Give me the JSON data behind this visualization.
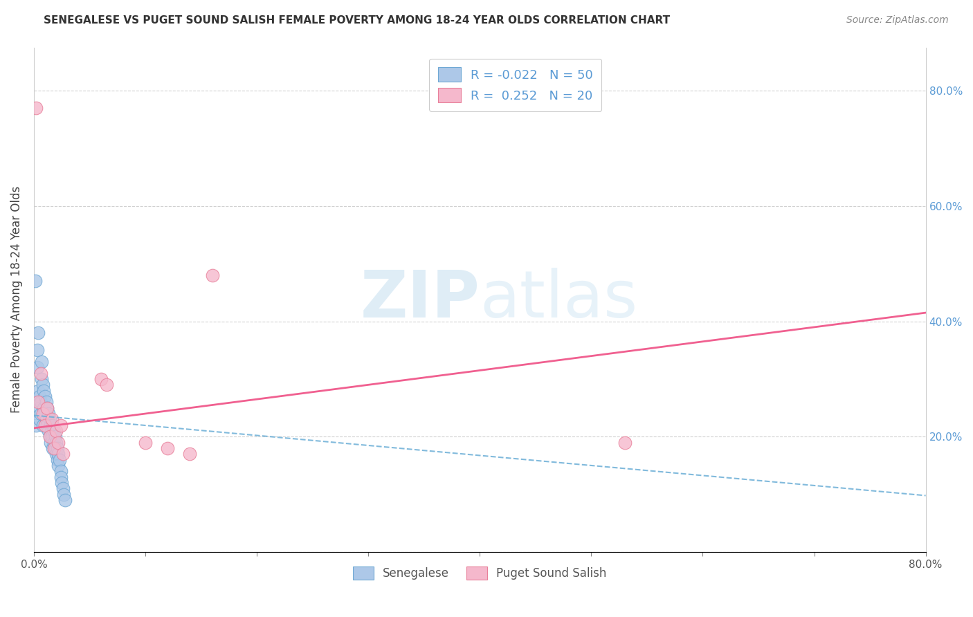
{
  "title": "SENEGALESE VS PUGET SOUND SALISH FEMALE POVERTY AMONG 18-24 YEAR OLDS CORRELATION CHART",
  "source": "Source: ZipAtlas.com",
  "ylabel": "Female Poverty Among 18-24 Year Olds",
  "xlim": [
    0,
    0.8
  ],
  "ylim": [
    0,
    0.875
  ],
  "x_ticks": [
    0.0,
    0.1,
    0.2,
    0.3,
    0.4,
    0.5,
    0.6,
    0.7,
    0.8
  ],
  "x_tick_labels": [
    "0.0%",
    "",
    "",
    "",
    "",
    "",
    "",
    "",
    "80.0%"
  ],
  "y_ticks": [
    0.0,
    0.2,
    0.4,
    0.6,
    0.8
  ],
  "y_tick_labels": [
    "",
    "",
    "",
    "",
    ""
  ],
  "right_y_ticks": [
    0.0,
    0.2,
    0.4,
    0.6,
    0.8
  ],
  "right_y_tick_labels": [
    "",
    "20.0%",
    "40.0%",
    "60.0%",
    "80.0%"
  ],
  "blue_color": "#adc8e8",
  "pink_color": "#f5b8cc",
  "blue_edge": "#6fa8d4",
  "pink_edge": "#e8809a",
  "blue_line_color": "#6baed6",
  "pink_line_color": "#f06090",
  "legend_R_senegalese": "R = -0.022",
  "legend_N_senegalese": "N = 50",
  "legend_R_salish": "R =  0.252",
  "legend_N_salish": "N = 20",
  "senegalese_x": [
    0.001,
    0.002,
    0.003,
    0.003,
    0.004,
    0.004,
    0.005,
    0.005,
    0.005,
    0.006,
    0.006,
    0.007,
    0.007,
    0.008,
    0.008,
    0.009,
    0.009,
    0.01,
    0.01,
    0.011,
    0.011,
    0.012,
    0.012,
    0.013,
    0.013,
    0.014,
    0.014,
    0.015,
    0.015,
    0.016,
    0.016,
    0.017,
    0.017,
    0.018,
    0.018,
    0.019,
    0.019,
    0.02,
    0.02,
    0.021,
    0.021,
    0.022,
    0.022,
    0.023,
    0.024,
    0.024,
    0.025,
    0.026,
    0.027,
    0.028
  ],
  "senegalese_y": [
    0.47,
    0.22,
    0.35,
    0.32,
    0.38,
    0.28,
    0.27,
    0.25,
    0.23,
    0.24,
    0.26,
    0.33,
    0.3,
    0.29,
    0.22,
    0.28,
    0.25,
    0.27,
    0.24,
    0.26,
    0.23,
    0.25,
    0.22,
    0.24,
    0.21,
    0.23,
    0.2,
    0.22,
    0.19,
    0.21,
    0.2,
    0.22,
    0.18,
    0.21,
    0.19,
    0.2,
    0.18,
    0.19,
    0.17,
    0.18,
    0.16,
    0.17,
    0.15,
    0.16,
    0.14,
    0.13,
    0.12,
    0.11,
    0.1,
    0.09
  ],
  "salish_x": [
    0.002,
    0.004,
    0.006,
    0.008,
    0.01,
    0.012,
    0.014,
    0.016,
    0.018,
    0.02,
    0.022,
    0.06,
    0.065,
    0.1,
    0.12,
    0.14,
    0.16,
    0.53,
    0.024,
    0.026
  ],
  "salish_y": [
    0.77,
    0.26,
    0.31,
    0.24,
    0.22,
    0.25,
    0.2,
    0.23,
    0.18,
    0.21,
    0.19,
    0.3,
    0.29,
    0.19,
    0.18,
    0.17,
    0.48,
    0.19,
    0.22,
    0.17
  ],
  "blue_trendline_x": [
    0.0,
    0.8
  ],
  "blue_trendline_y": [
    0.237,
    0.098
  ],
  "pink_trendline_x": [
    0.0,
    0.8
  ],
  "pink_trendline_y": [
    0.215,
    0.415
  ],
  "watermark_zip": "ZIP",
  "watermark_atlas": "atlas",
  "background_color": "#ffffff",
  "grid_color": "#cccccc",
  "title_fontsize": 11,
  "source_fontsize": 10,
  "tick_fontsize": 11,
  "ylabel_fontsize": 12
}
